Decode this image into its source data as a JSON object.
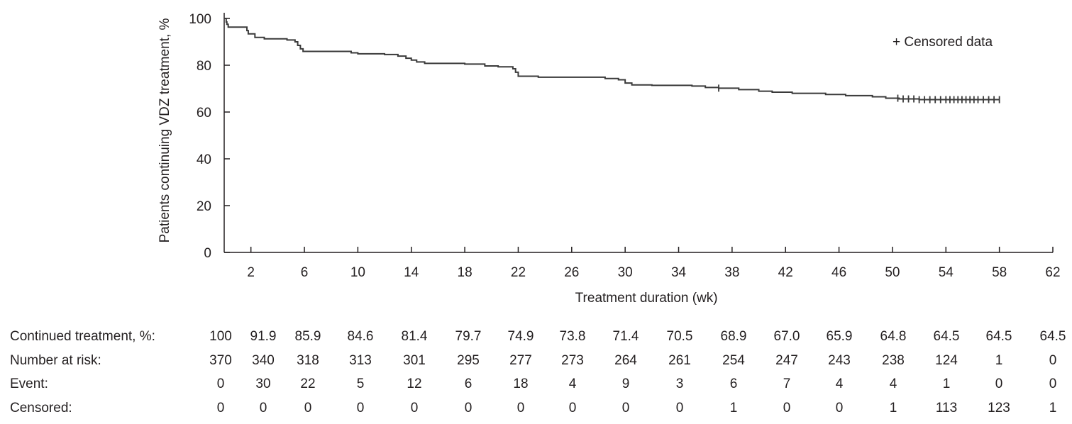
{
  "chart_data": {
    "type": "line",
    "xlabel": "Treatment duration (wk)",
    "ylabel": "Patients continuing VDZ treatment, %",
    "xlim": [
      0,
      62
    ],
    "ylim": [
      0,
      100
    ],
    "x_ticks": [
      2,
      6,
      10,
      14,
      18,
      22,
      26,
      30,
      34,
      38,
      42,
      46,
      50,
      54,
      58,
      62
    ],
    "y_ticks": [
      0,
      20,
      40,
      60,
      80,
      100
    ],
    "legend": "+ Censored data",
    "legend_position": "top-right",
    "grid": false,
    "series": [
      {
        "x": [
          0,
          0.15,
          0.2,
          0.3,
          1.6,
          1.7,
          1.8,
          2.3,
          3.0,
          4.0,
          4.7,
          5.3,
          5.5,
          5.7,
          5.9,
          6.2,
          7.0,
          9.5,
          10.0,
          12.0,
          13.0,
          13.6,
          14.0,
          14.4,
          15.0,
          18.0,
          19.5,
          20.5,
          21.6,
          21.8,
          22.0,
          23.5,
          28.0,
          28.5,
          29.5,
          30.0,
          30.5,
          32.0,
          35.0,
          36.0,
          37.0,
          38.5,
          40.0,
          41.0,
          42.5,
          45.0,
          46.5,
          48.5,
          49.5,
          50.5,
          52.0,
          58.0
        ],
        "y": [
          100,
          98.5,
          97.5,
          96.3,
          96.3,
          94.8,
          93.4,
          91.9,
          91.3,
          91.3,
          90.8,
          90.0,
          88.5,
          87.0,
          85.9,
          85.9,
          85.9,
          85.3,
          84.9,
          84.6,
          83.9,
          83.0,
          82.2,
          81.4,
          80.8,
          80.5,
          79.7,
          79.3,
          78.5,
          77.0,
          75.3,
          74.9,
          74.9,
          74.3,
          73.8,
          72.4,
          71.6,
          71.4,
          71.1,
          70.5,
          70.2,
          69.6,
          68.9,
          68.5,
          68.0,
          67.5,
          67.0,
          66.5,
          65.9,
          65.6,
          65.3,
          65.3
        ]
      }
    ],
    "censored_x": [
      37.0,
      50.4,
      50.8,
      51.2,
      51.6,
      52.0,
      52.4,
      52.8,
      53.2,
      53.6,
      54.0,
      54.3,
      54.6,
      54.9,
      55.2,
      55.5,
      55.8,
      56.1,
      56.4,
      56.8,
      57.2,
      57.6,
      58.0
    ],
    "risk_table": {
      "time_points": [
        0,
        2,
        6,
        10,
        14,
        18,
        22,
        26,
        30,
        34,
        38,
        42,
        46,
        50,
        54,
        58,
        62
      ],
      "rows": [
        {
          "label": "Continued treatment, %:",
          "values": [
            "100",
            "91.9",
            "85.9",
            "84.6",
            "81.4",
            "79.7",
            "74.9",
            "73.8",
            "71.4",
            "70.5",
            "68.9",
            "67.0",
            "65.9",
            "64.8",
            "64.5",
            "64.5",
            "64.5"
          ]
        },
        {
          "label": "Number at risk:",
          "values": [
            "370",
            "340",
            "318",
            "313",
            "301",
            "295",
            "277",
            "273",
            "264",
            "261",
            "254",
            "247",
            "243",
            "238",
            "124",
            "1",
            "0"
          ]
        },
        {
          "label": "Event:",
          "values": [
            "0",
            "30",
            "22",
            "5",
            "12",
            "6",
            "18",
            "4",
            "9",
            "3",
            "6",
            "7",
            "4",
            "4",
            "1",
            "0",
            "0"
          ]
        },
        {
          "label": "Censored:",
          "values": [
            "0",
            "0",
            "0",
            "0",
            "0",
            "0",
            "0",
            "0",
            "0",
            "0",
            "1",
            "0",
            "0",
            "1",
            "113",
            "123",
            "1"
          ]
        }
      ]
    }
  }
}
